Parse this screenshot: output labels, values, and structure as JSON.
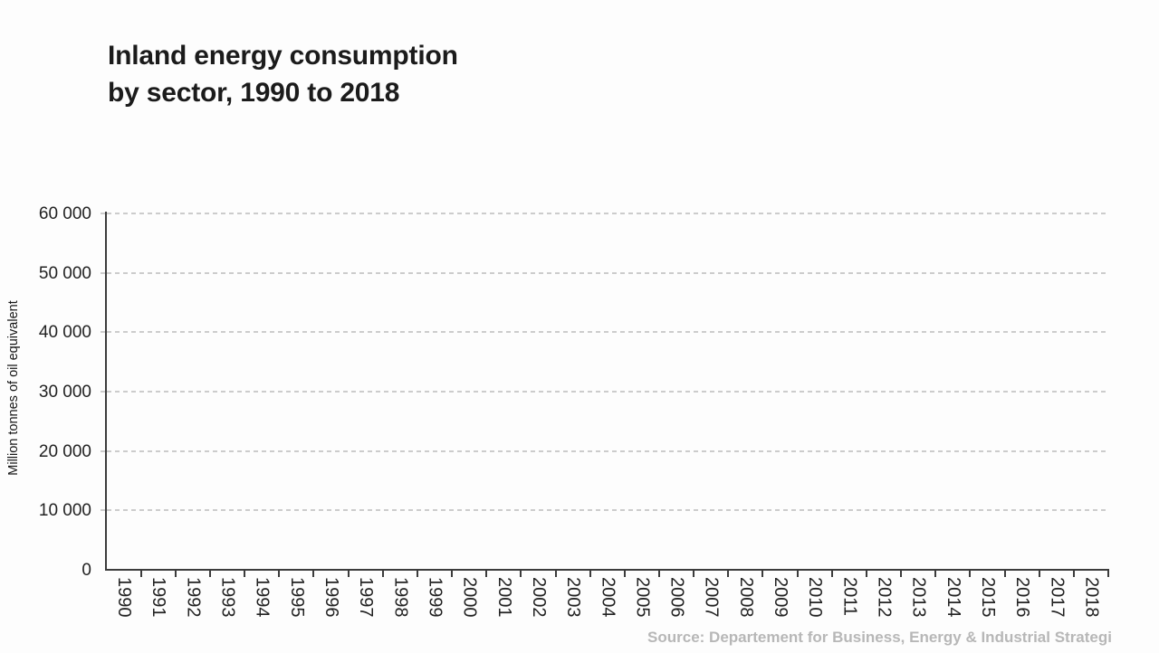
{
  "title": {
    "line1": "Inland energy consumption",
    "line2": "by sector, 1990 to 2018"
  },
  "y_axis": {
    "label": "Million tonnes of oil equivalent",
    "tick_labels": [
      "0",
      "10 000",
      "20 000",
      "30 000",
      "40 000",
      "50 000",
      "60 000"
    ]
  },
  "x_axis": {
    "tick_labels": [
      "1990",
      "1991",
      "1992",
      "1993",
      "1994",
      "1995",
      "1996",
      "1997",
      "1998",
      "1999",
      "2000",
      "2001",
      "2002",
      "2003",
      "2004",
      "2005",
      "2006",
      "2007",
      "2008",
      "2009",
      "2010",
      "2011",
      "2012",
      "2013",
      "2014",
      "2015",
      "2016",
      "2017",
      "2018"
    ]
  },
  "source": "Source: Departement for Business, Energy & Industrial Strategi",
  "colors": {
    "background": "#fdfdfd",
    "title": "#1b1b1b",
    "axis_line": "#3c3c3c",
    "gridline": "#cccccc",
    "tick_label": "#222222",
    "source": "#b7b7b7"
  },
  "chart_data": {
    "type": "line",
    "title": "Inland energy consumption by sector, 1990 to 2018",
    "xlabel": "",
    "ylabel": "Million tonnes of oil equivalent",
    "x": [
      1990,
      1991,
      1992,
      1993,
      1994,
      1995,
      1996,
      1997,
      1998,
      1999,
      2000,
      2001,
      2002,
      2003,
      2004,
      2005,
      2006,
      2007,
      2008,
      2009,
      2010,
      2011,
      2012,
      2013,
      2014,
      2015,
      2016,
      2017,
      2018
    ],
    "series": [],
    "ylim": [
      0,
      60000
    ],
    "y_ticks": [
      0,
      10000,
      20000,
      30000,
      40000,
      50000,
      60000
    ],
    "grid": "horizontal dashed",
    "legend_position": "none",
    "note": "Plot area is empty in this frame - axes, gridlines and tick labels are rendered but no data series is drawn yet.",
    "source": "Source: Departement for Business, Energy & Industrial Strategi"
  }
}
